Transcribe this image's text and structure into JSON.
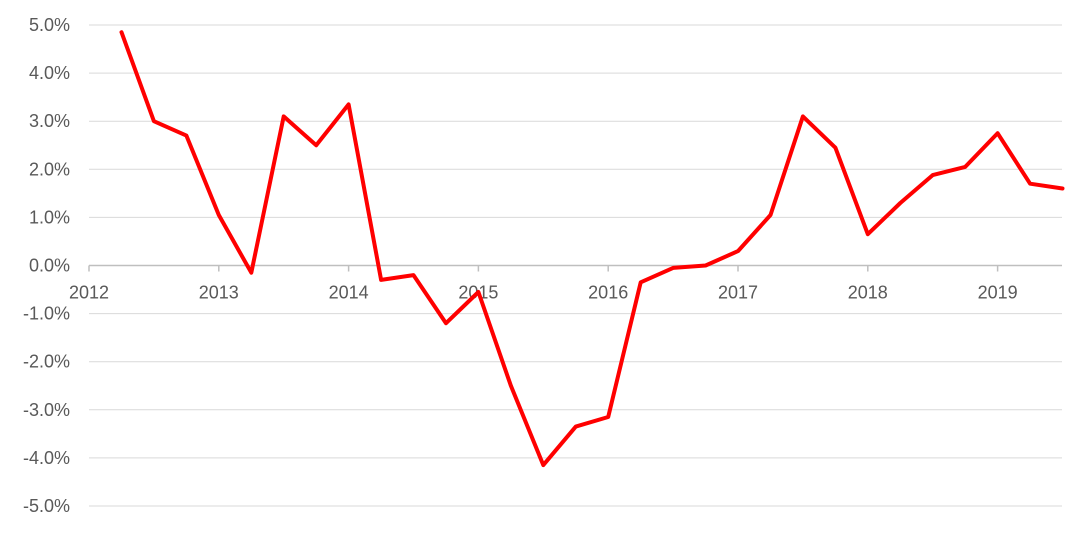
{
  "chart_data": {
    "type": "line",
    "title": "",
    "xlabel": "",
    "ylabel": "",
    "x_ticks": [
      "2012",
      "2013",
      "2014",
      "2015",
      "2016",
      "2017",
      "2018",
      "2019"
    ],
    "x_range": [
      2012,
      2019.5
    ],
    "ylim": [
      -5,
      5
    ],
    "y_ticks": [
      "5.0%",
      "4.0%",
      "3.0%",
      "2.0%",
      "1.0%",
      "0.0%",
      "-1.0%",
      "-2.0%",
      "-3.0%",
      "-4.0%",
      "-5.0%"
    ],
    "y_tick_values": [
      5,
      4,
      3,
      2,
      1,
      0,
      -1,
      -2,
      -3,
      -4,
      -5
    ],
    "grid": true,
    "series": [
      {
        "color": "#ff0000",
        "x": [
          2012.25,
          2012.5,
          2012.75,
          2013.0,
          2013.25,
          2013.5,
          2013.75,
          2014.0,
          2014.25,
          2014.5,
          2014.75,
          2015.0,
          2015.25,
          2015.5,
          2015.75,
          2016.0,
          2016.25,
          2016.5,
          2016.75,
          2017.0,
          2017.25,
          2017.5,
          2017.75,
          2018.0,
          2018.25,
          2018.5,
          2018.75,
          2019.0,
          2019.25,
          2019.5
        ],
        "values": [
          4.85,
          3.0,
          2.7,
          1.05,
          -0.15,
          3.1,
          2.5,
          3.35,
          -0.3,
          -0.2,
          -1.2,
          -0.55,
          -2.5,
          -4.15,
          -3.35,
          -3.15,
          -0.35,
          -0.05,
          0.0,
          0.3,
          1.05,
          3.1,
          2.45,
          0.65,
          1.3,
          1.88,
          2.05,
          2.75,
          1.7,
          1.6
        ]
      }
    ]
  }
}
